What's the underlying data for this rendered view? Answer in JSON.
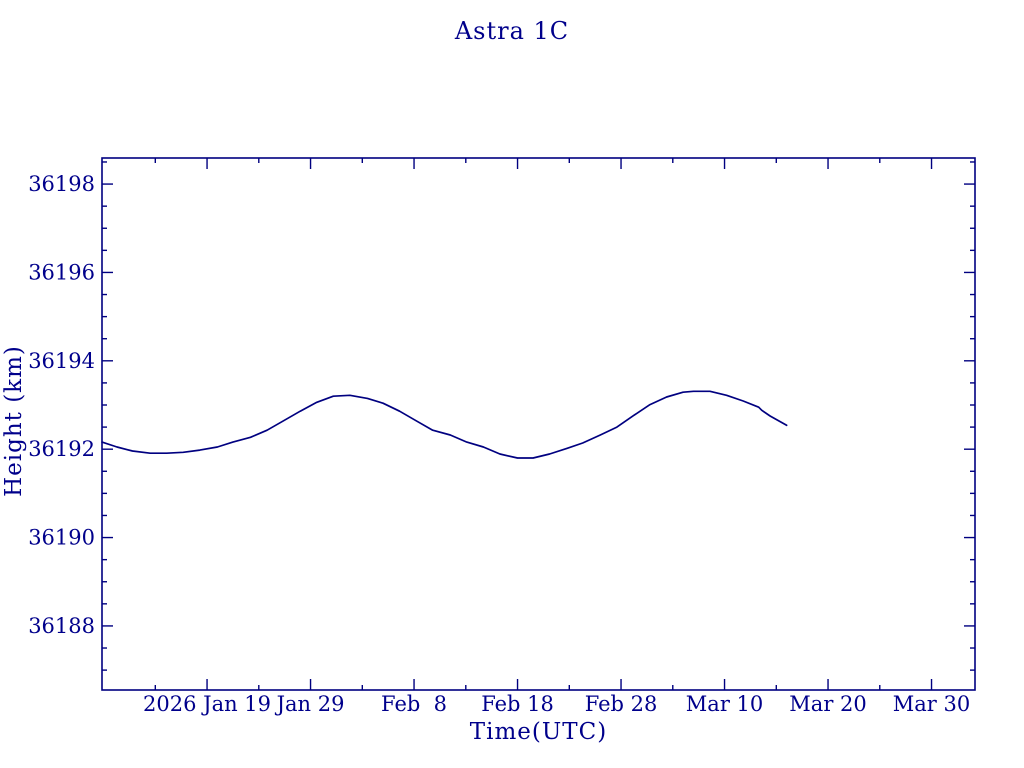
{
  "figure": {
    "title": "Astra 1C",
    "xlabel": "Time(UTC)",
    "ylabel": "Height (km)"
  },
  "chart_data": {
    "type": "line",
    "title": "Astra 1C",
    "xlabel": "Time(UTC)",
    "ylabel": "Height (km)",
    "grid": false,
    "legend": null,
    "line_color": "#000080",
    "text_color": "#00008b",
    "x_unit": "days relative to 2026 Jan 19 (tick t=0)",
    "xlim": [
      -10.15,
      74.2
    ],
    "ylim": [
      36186.55,
      36198.59
    ],
    "x_major_ticks": [
      {
        "t": 0,
        "label": "2026 Jan 19"
      },
      {
        "t": 10,
        "label": "Jan 29"
      },
      {
        "t": 20,
        "label": "Feb  8"
      },
      {
        "t": 30,
        "label": "Feb 18"
      },
      {
        "t": 40,
        "label": "Feb 28"
      },
      {
        "t": 50,
        "label": "Mar 10"
      },
      {
        "t": 60,
        "label": "Mar 20"
      },
      {
        "t": 70,
        "label": "Mar 30"
      }
    ],
    "x_minor_ticks": [
      -5,
      5,
      15,
      25,
      35,
      45,
      55,
      65
    ],
    "y_major_ticks": [
      36188,
      36190,
      36192,
      36194,
      36196,
      36198
    ],
    "y_minor_step": 0.5,
    "series": [
      {
        "name": "Astra 1C height",
        "points": [
          [
            -10.15,
            36192.16
          ],
          [
            -8.7,
            36192.05
          ],
          [
            -7.2,
            36191.96
          ],
          [
            -5.5,
            36191.91
          ],
          [
            -3.9,
            36191.91
          ],
          [
            -2.3,
            36191.93
          ],
          [
            -0.7,
            36191.98
          ],
          [
            1.0,
            36192.05
          ],
          [
            2.5,
            36192.16
          ],
          [
            4.2,
            36192.27
          ],
          [
            5.8,
            36192.43
          ],
          [
            7.3,
            36192.63
          ],
          [
            9.0,
            36192.86
          ],
          [
            10.6,
            36193.06
          ],
          [
            12.2,
            36193.2
          ],
          [
            13.8,
            36193.22
          ],
          [
            15.5,
            36193.15
          ],
          [
            17.0,
            36193.04
          ],
          [
            18.6,
            36192.86
          ],
          [
            20.3,
            36192.63
          ],
          [
            21.8,
            36192.43
          ],
          [
            23.5,
            36192.32
          ],
          [
            25.1,
            36192.16
          ],
          [
            26.7,
            36192.05
          ],
          [
            28.3,
            36191.89
          ],
          [
            30.0,
            36191.8
          ],
          [
            31.5,
            36191.8
          ],
          [
            33.1,
            36191.89
          ],
          [
            34.8,
            36192.02
          ],
          [
            36.3,
            36192.14
          ],
          [
            38.0,
            36192.32
          ],
          [
            39.6,
            36192.5
          ],
          [
            41.2,
            36192.76
          ],
          [
            42.8,
            36193.01
          ],
          [
            44.4,
            36193.18
          ],
          [
            46.0,
            36193.29
          ],
          [
            47.0,
            36193.31
          ],
          [
            48.6,
            36193.31
          ],
          [
            50.2,
            36193.22
          ],
          [
            51.8,
            36193.09
          ],
          [
            53.3,
            36192.95
          ],
          [
            53.6,
            36192.88
          ],
          [
            54.4,
            36192.75
          ],
          [
            56.0,
            36192.54
          ]
        ]
      }
    ]
  }
}
